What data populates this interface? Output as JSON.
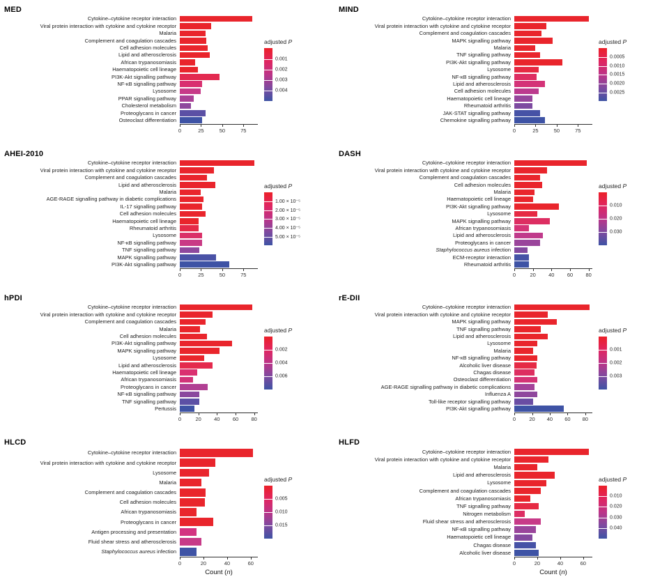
{
  "figure": {
    "background": "#ffffff",
    "legend_title": "adjusted",
    "legend_title_italic": "P",
    "xlabel_pre": "Count (",
    "xlabel_italic": "n",
    "xlabel_post": ")"
  },
  "colorscale": {
    "gradient": [
      "#ec2028",
      "#e02560",
      "#bc3488",
      "#7e4a9f",
      "#3e53a4"
    ]
  },
  "chart_data": [
    {
      "type": "bar",
      "title": "MED",
      "orientation": "horizontal",
      "xlim": [
        0,
        92
      ],
      "xticks": [
        0,
        25,
        50,
        75
      ],
      "legend_ticks": [
        "0.001",
        "0.002",
        "0.003",
        "0.004"
      ],
      "show_xlabel": false,
      "bars": [
        {
          "label": "Cytokine–cytokine receptor interaction",
          "value": 85,
          "color": "#e9252c"
        },
        {
          "label": "Viral protein interaction with cytokine and cytokine receptor",
          "value": 37,
          "color": "#e9252c"
        },
        {
          "label": "Malaria",
          "value": 30,
          "color": "#e9252c"
        },
        {
          "label": "Complement and coagulation cascades",
          "value": 31,
          "color": "#e9252c"
        },
        {
          "label": "Cell adhesion molecules",
          "value": 33,
          "color": "#e9252c"
        },
        {
          "label": "Lipid and atherosclerosis",
          "value": 35,
          "color": "#e9252c"
        },
        {
          "label": "African trypanosomiasis",
          "value": 18,
          "color": "#e9252c"
        },
        {
          "label": "Haematopoietic cell lineage",
          "value": 21,
          "color": "#e9252c"
        },
        {
          "label": "PI3K-Akt signalling pathway",
          "value": 47,
          "color": "#e32a50"
        },
        {
          "label": "NF-κB signalling pathway",
          "value": 26,
          "color": "#d93070"
        },
        {
          "label": "Lysosome",
          "value": 25,
          "color": "#c73a88"
        },
        {
          "label": "PPAR signalling pathway",
          "value": 16,
          "color": "#aa4196"
        },
        {
          "label": "Cholesterol metabolism",
          "value": 13,
          "color": "#8f489d"
        },
        {
          "label": "Proteoglycans in cancer",
          "value": 30,
          "color": "#5b50a5"
        },
        {
          "label": "Osteoclast differentiation",
          "value": 26,
          "color": "#3e53a5"
        }
      ]
    },
    {
      "type": "bar",
      "title": "MIND",
      "orientation": "horizontal",
      "xlim": [
        0,
        92
      ],
      "xticks": [
        0,
        25,
        50,
        75
      ],
      "legend_ticks": [
        "0.0005",
        "0.0010",
        "0.0015",
        "0.0020",
        "0.0025"
      ],
      "show_xlabel": false,
      "bars": [
        {
          "label": "Cytokine–cytokine receptor interaction",
          "value": 88,
          "color": "#e9252c"
        },
        {
          "label": "Viral protein interaction with cytokine and cytokine receptor",
          "value": 38,
          "color": "#e9252c"
        },
        {
          "label": "Complement and coagulation cascades",
          "value": 32,
          "color": "#e9252c"
        },
        {
          "label": "MAPK signalling pathway",
          "value": 45,
          "color": "#e9252c"
        },
        {
          "label": "Malaria",
          "value": 25,
          "color": "#e9252c"
        },
        {
          "label": "TNF signalling pathway",
          "value": 30,
          "color": "#e9252c"
        },
        {
          "label": "PI3K-Akt signalling pathway",
          "value": 57,
          "color": "#e9252c"
        },
        {
          "label": "Lysosome",
          "value": 29,
          "color": "#e62a43"
        },
        {
          "label": "NF-κB signalling pathway",
          "value": 26,
          "color": "#de2e62"
        },
        {
          "label": "Lipid and atherosclerosis",
          "value": 36,
          "color": "#d43378"
        },
        {
          "label": "Cell adhesion molecules",
          "value": 29,
          "color": "#bc3a8e"
        },
        {
          "label": "Haematopoietic cell lineage",
          "value": 21,
          "color": "#96469c"
        },
        {
          "label": "Rheumatoid arthritis",
          "value": 21,
          "color": "#7d4aa0"
        },
        {
          "label": "JAK-STAT signalling pathway",
          "value": 30,
          "color": "#4652a6"
        },
        {
          "label": "Chemokine signalling pathway",
          "value": 36,
          "color": "#3e53a5"
        }
      ]
    },
    {
      "type": "bar",
      "title": "AHEI-2010",
      "orientation": "horizontal",
      "xlim": [
        0,
        92
      ],
      "xticks": [
        0,
        25,
        50,
        75
      ],
      "legend_ticks": [
        "1.00 × 10⁻⁵",
        "2.00 × 10⁻⁵",
        "3.00 × 10⁻⁵",
        "4.00 × 10⁻⁵",
        "5.00 × 10⁻⁵"
      ],
      "show_xlabel": false,
      "bars": [
        {
          "label": "Cytokine–cytokine receptor interaction",
          "value": 88,
          "color": "#e9252c"
        },
        {
          "label": "Viral protein interaction with cytokine and cytokine receptor",
          "value": 40,
          "color": "#e9252c"
        },
        {
          "label": "Complement and coagulation cascades",
          "value": 32,
          "color": "#e9252c"
        },
        {
          "label": "Lipid and atherosclerosis",
          "value": 42,
          "color": "#e9252c"
        },
        {
          "label": "Malaria",
          "value": 25,
          "color": "#e9252c"
        },
        {
          "label": "AGE-RAGE signalling pathway in diabetic complications",
          "value": 28,
          "color": "#e9252c"
        },
        {
          "label": "IL-17 signalling pathway",
          "value": 26,
          "color": "#e9252c"
        },
        {
          "label": "Cell adhesion molecules",
          "value": 30,
          "color": "#e9252c"
        },
        {
          "label": "Haematopoietic cell lineage",
          "value": 22,
          "color": "#e9252c"
        },
        {
          "label": "Rheumatoid arthritis",
          "value": 22,
          "color": "#e52a48"
        },
        {
          "label": "Lysosome",
          "value": 26,
          "color": "#da3068"
        },
        {
          "label": "NF-κB signalling pathway",
          "value": 26,
          "color": "#c93a85"
        },
        {
          "label": "TNF signalling pathway",
          "value": 23,
          "color": "#8f489d"
        },
        {
          "label": "MAPK signalling pathway",
          "value": 43,
          "color": "#4a52a6"
        },
        {
          "label": "PI3K-Akt signalling pathway",
          "value": 58,
          "color": "#3e53a5"
        }
      ]
    },
    {
      "type": "bar",
      "title": "DASH",
      "orientation": "horizontal",
      "xlim": [
        0,
        84
      ],
      "xticks": [
        0,
        20,
        40,
        60,
        80
      ],
      "legend_ticks": [
        "0.010",
        "0.020",
        "0.030"
      ],
      "show_xlabel": false,
      "bars": [
        {
          "label": "Cytokine–cytokine receptor interaction",
          "value": 78,
          "color": "#e9252c"
        },
        {
          "label": "Viral protein interaction with cytokine and cytokine receptor",
          "value": 35,
          "color": "#e9252c"
        },
        {
          "label": "Complement and coagulation cascades",
          "value": 28,
          "color": "#e9252c"
        },
        {
          "label": "Cell adhesion molecules",
          "value": 30,
          "color": "#e9252c"
        },
        {
          "label": "Malaria",
          "value": 22,
          "color": "#e9252c"
        },
        {
          "label": "Haematopoietic cell lineage",
          "value": 20,
          "color": "#e9252c"
        },
        {
          "label": "PI3K-Akt signalling pathway",
          "value": 48,
          "color": "#e9252c"
        },
        {
          "label": "Lysosome",
          "value": 25,
          "color": "#e62a43"
        },
        {
          "label": "MAPK signalling pathway",
          "value": 38,
          "color": "#dd2e62"
        },
        {
          "label": "African trypanosomiasis",
          "value": 16,
          "color": "#d53377"
        },
        {
          "label": "Lipid and atherosclerosis",
          "value": 31,
          "color": "#c03a8b"
        },
        {
          "label": "Proteoglycans in cancer",
          "value": 28,
          "color": "#9a459b"
        },
        {
          "label": "Staphylococcus aureus infection",
          "value": 14,
          "color": "#83499f",
          "italic_words": 2
        },
        {
          "label": "ECM-receptor interaction",
          "value": 16,
          "color": "#4452a6"
        },
        {
          "label": "Rheumatoid arthritis",
          "value": 16,
          "color": "#3e53a5"
        }
      ]
    },
    {
      "type": "bar",
      "title": "hPDI",
      "orientation": "horizontal",
      "xlim": [
        0,
        84
      ],
      "xticks": [
        0,
        20,
        40,
        60,
        80
      ],
      "legend_ticks": [
        "0.002",
        "0.004",
        "0.006"
      ],
      "show_xlabel": false,
      "bars": [
        {
          "label": "Cytokine–cytokine receptor interaction",
          "value": 78,
          "color": "#e9252c"
        },
        {
          "label": "Viral protein interaction with cytokine and cytokine receptor",
          "value": 35,
          "color": "#e9252c"
        },
        {
          "label": "Complement and coagulation cascades",
          "value": 28,
          "color": "#e9252c"
        },
        {
          "label": "Malaria",
          "value": 22,
          "color": "#e9252c"
        },
        {
          "label": "Cell adhesion molecules",
          "value": 29,
          "color": "#e9252c"
        },
        {
          "label": "PI3K-Akt signalling pathway",
          "value": 56,
          "color": "#e9252c"
        },
        {
          "label": "MAPK signalling pathway",
          "value": 43,
          "color": "#e9252c"
        },
        {
          "label": "Lysosome",
          "value": 26,
          "color": "#e9252c"
        },
        {
          "label": "Lipid and atherosclerosis",
          "value": 35,
          "color": "#e42a4d"
        },
        {
          "label": "Haematopoietic cell lineage",
          "value": 19,
          "color": "#da3070"
        },
        {
          "label": "African trypanosomiasis",
          "value": 14,
          "color": "#d23379"
        },
        {
          "label": "Proteoglycans in cancer",
          "value": 30,
          "color": "#b13f93"
        },
        {
          "label": "NF-κB signalling pathway",
          "value": 21,
          "color": "#8a489e"
        },
        {
          "label": "TNF signalling pathway",
          "value": 21,
          "color": "#5c50a5"
        },
        {
          "label": "Pertussis",
          "value": 16,
          "color": "#3e53a5"
        }
      ]
    },
    {
      "type": "bar",
      "title": "rE-DII",
      "orientation": "horizontal",
      "xlim": [
        0,
        88
      ],
      "xticks": [
        0,
        20,
        40,
        60,
        80
      ],
      "legend_ticks": [
        "0.001",
        "0.002",
        "0.003"
      ],
      "show_xlabel": false,
      "bars": [
        {
          "label": "Cytokine–cytokine receptor interaction",
          "value": 85,
          "color": "#e9252c"
        },
        {
          "label": "Viral protein interaction with cytokine and cytokine receptor",
          "value": 38,
          "color": "#e9252c"
        },
        {
          "label": "MAPK signalling pathway",
          "value": 48,
          "color": "#e9252c"
        },
        {
          "label": "TNF signalling pathway",
          "value": 30,
          "color": "#e9252c"
        },
        {
          "label": "Lipid and atherosclerosis",
          "value": 38,
          "color": "#e9252c"
        },
        {
          "label": "Lysosome",
          "value": 26,
          "color": "#e9252c"
        },
        {
          "label": "Malaria",
          "value": 21,
          "color": "#e9252c"
        },
        {
          "label": "NF-κB signalling pathway",
          "value": 26,
          "color": "#e9252c"
        },
        {
          "label": "Alcoholic liver disease",
          "value": 25,
          "color": "#e52a45"
        },
        {
          "label": "Chagas disease",
          "value": 23,
          "color": "#dd2e60"
        },
        {
          "label": "Osteoclast differentiation",
          "value": 26,
          "color": "#d53375"
        },
        {
          "label": "AGE-RAGE signalling pathway in diabetic complications",
          "value": 23,
          "color": "#a4429a"
        },
        {
          "label": "Influenza A",
          "value": 26,
          "color": "#8f479d"
        },
        {
          "label": "Toll-like receptor signalling pathway",
          "value": 21,
          "color": "#6a4da3"
        },
        {
          "label": "PI3K-Akt signalling pathway",
          "value": 56,
          "color": "#3e53a5"
        }
      ]
    },
    {
      "type": "bar",
      "title": "HLCD",
      "orientation": "horizontal",
      "xlim": [
        0,
        66
      ],
      "xticks": [
        0,
        20,
        40,
        60
      ],
      "legend_ticks": [
        "0.005",
        "0.010",
        "0.015"
      ],
      "show_xlabel": true,
      "bars": [
        {
          "label": "Cytokine–cytokine receptor interaction",
          "value": 62,
          "color": "#e9252c"
        },
        {
          "label": "Viral protein interaction with cytokine and cytokine receptor",
          "value": 30,
          "color": "#e9252c"
        },
        {
          "label": "Lysosome",
          "value": 25,
          "color": "#e9252c"
        },
        {
          "label": "Malaria",
          "value": 18,
          "color": "#e9252c"
        },
        {
          "label": "Complement and coagulation cascades",
          "value": 22,
          "color": "#e9252c"
        },
        {
          "label": "Cell adhesion molecules",
          "value": 21,
          "color": "#e9252c"
        },
        {
          "label": "African trypanosomiasis",
          "value": 14,
          "color": "#e9252c"
        },
        {
          "label": "Proteoglycans in cancer",
          "value": 28,
          "color": "#e9252c"
        },
        {
          "label": "Antigen processing and presentation",
          "value": 14,
          "color": "#d33381"
        },
        {
          "label": "Fluid shear stress and atherosclerosis",
          "value": 18,
          "color": "#c73a88"
        },
        {
          "label": "Staphylococcus aureus infection",
          "value": 14,
          "color": "#3e53a5",
          "italic_words": 2
        }
      ]
    },
    {
      "type": "bar",
      "title": "HLFD",
      "orientation": "horizontal",
      "xlim": [
        0,
        68
      ],
      "xticks": [
        0,
        20,
        40,
        60
      ],
      "legend_ticks": [
        "0.010",
        "0.020",
        "0.030",
        "0.040"
      ],
      "show_xlabel": true,
      "bars": [
        {
          "label": "Cytokine–cytokine receptor interaction",
          "value": 65,
          "color": "#e9252c"
        },
        {
          "label": "Viral protein interaction with cytokine and cytokine receptor",
          "value": 30,
          "color": "#e9252c"
        },
        {
          "label": "Malaria",
          "value": 20,
          "color": "#e9252c"
        },
        {
          "label": "Lipid and atherosclerosis",
          "value": 35,
          "color": "#e9252c"
        },
        {
          "label": "Lysosome",
          "value": 28,
          "color": "#e9252c"
        },
        {
          "label": "Complement and coagulation cascades",
          "value": 23,
          "color": "#e9252c"
        },
        {
          "label": "African trypanosomiasis",
          "value": 14,
          "color": "#e9252c"
        },
        {
          "label": "TNF signalling pathway",
          "value": 21,
          "color": "#e62a43"
        },
        {
          "label": "Nitrogen metabolism",
          "value": 9,
          "color": "#dd2e64"
        },
        {
          "label": "Fluid shear stress and atherosclerosis",
          "value": 23,
          "color": "#c73a88"
        },
        {
          "label": "NF-κB signalling pathway",
          "value": 19,
          "color": "#9a459b"
        },
        {
          "label": "Haematopoietic cell lineage",
          "value": 16,
          "color": "#84499f"
        },
        {
          "label": "Chagas disease",
          "value": 19,
          "color": "#4652a6"
        },
        {
          "label": "Alcoholic liver disease",
          "value": 21,
          "color": "#3e53a5"
        }
      ]
    }
  ]
}
